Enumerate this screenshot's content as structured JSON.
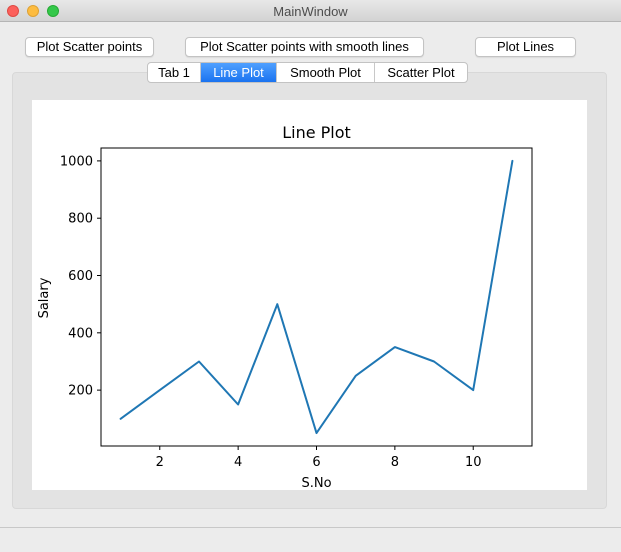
{
  "window": {
    "title": "MainWindow"
  },
  "toolbar": {
    "scatter_label": "Plot Scatter points",
    "scatter_smooth_label": "Plot Scatter points with smooth lines",
    "lines_label": "Plot Lines"
  },
  "tabs": [
    {
      "label": "Tab 1",
      "active": false
    },
    {
      "label": "Line Plot",
      "active": true
    },
    {
      "label": "Smooth Plot",
      "active": false
    },
    {
      "label": "Scatter Plot",
      "active": false
    }
  ],
  "colors": {
    "accent": "#1a73f0",
    "line": "#1f77b4"
  },
  "chart_data": {
    "type": "line",
    "title": "Line Plot",
    "xlabel": "S.No",
    "ylabel": "Salary",
    "x": [
      1,
      2,
      3,
      4,
      5,
      6,
      7,
      8,
      9,
      10,
      11
    ],
    "series": [
      {
        "values": [
          100,
          200,
          300,
          150,
          500,
          50,
          250,
          350,
          300,
          200,
          1000
        ]
      }
    ],
    "xlim": [
      0.5,
      11.5
    ],
    "ylim": [
      5,
      1045
    ],
    "xticks": [
      2,
      4,
      6,
      8,
      10
    ],
    "yticks": [
      200,
      400,
      600,
      800,
      1000
    ],
    "grid": false
  }
}
